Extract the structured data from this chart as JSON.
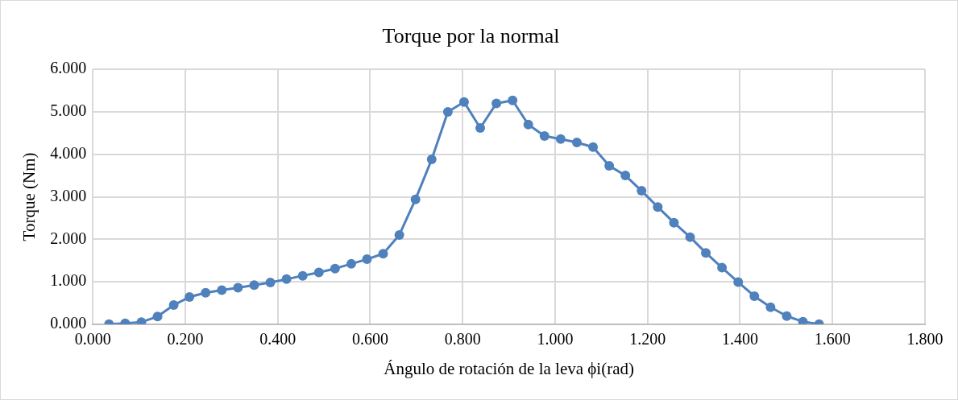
{
  "chart_data": {
    "type": "line",
    "title": "Torque por la normal",
    "xlabel": "Ángulo de rotación de la leva ϕi(rad)",
    "ylabel": "Torque (Nm)",
    "x": [
      0.035,
      0.07,
      0.105,
      0.14,
      0.175,
      0.209,
      0.244,
      0.279,
      0.314,
      0.349,
      0.384,
      0.419,
      0.454,
      0.489,
      0.524,
      0.559,
      0.593,
      0.628,
      0.663,
      0.698,
      0.733,
      0.768,
      0.803,
      0.838,
      0.873,
      0.908,
      0.942,
      0.977,
      1.012,
      1.047,
      1.082,
      1.117,
      1.152,
      1.187,
      1.222,
      1.257,
      1.292,
      1.326,
      1.361,
      1.396,
      1.431,
      1.466,
      1.501,
      1.536,
      1.571
    ],
    "series": [
      {
        "color": "#4f81bd",
        "values": [
          0.0,
          0.02,
          0.05,
          0.18,
          0.45,
          0.64,
          0.74,
          0.8,
          0.86,
          0.92,
          0.98,
          1.06,
          1.14,
          1.22,
          1.31,
          1.42,
          1.53,
          1.66,
          2.1,
          2.94,
          3.88,
          5.0,
          5.23,
          4.62,
          5.2,
          5.27,
          4.7,
          4.43,
          4.36,
          4.28,
          4.17,
          3.73,
          3.5,
          3.14,
          2.76,
          2.39,
          2.05,
          1.68,
          1.33,
          0.99,
          0.66,
          0.4,
          0.19,
          0.06,
          0.0
        ]
      }
    ],
    "xlim": [
      0,
      1.8
    ],
    "xticks": [
      {
        "value": 0,
        "label": "0.000"
      },
      {
        "value": 0.2,
        "label": "0.200"
      },
      {
        "value": 0.4,
        "label": "0.400"
      },
      {
        "value": 0.6,
        "label": "0.600"
      },
      {
        "value": 0.8,
        "label": "0.800"
      },
      {
        "value": 1,
        "label": "1.000"
      },
      {
        "value": 1.2,
        "label": "1.200"
      },
      {
        "value": 1.4,
        "label": "1.400"
      },
      {
        "value": 1.6,
        "label": "1.600"
      },
      {
        "value": 1.8,
        "label": "1.800"
      }
    ],
    "ylim": [
      0,
      6
    ],
    "yticks": [
      {
        "value": 0,
        "label": "0.000"
      },
      {
        "value": 1,
        "label": "1.000"
      },
      {
        "value": 2,
        "label": "2.000"
      },
      {
        "value": 3,
        "label": "3.000"
      },
      {
        "value": 4,
        "label": "4.000"
      },
      {
        "value": 5,
        "label": "5.000"
      },
      {
        "value": 6,
        "label": "6.000"
      }
    ],
    "grid": true,
    "legend": false,
    "marker": "circle",
    "line_style": "solid"
  }
}
